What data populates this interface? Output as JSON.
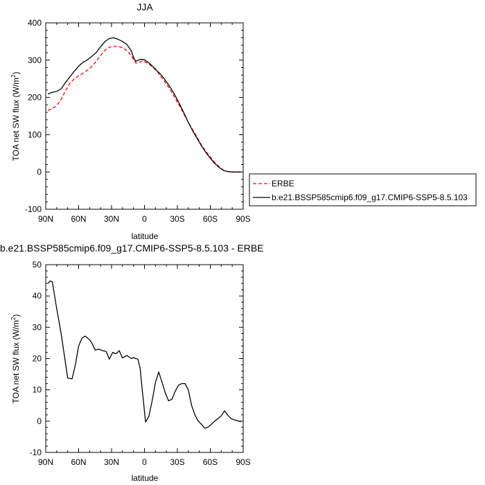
{
  "chart_data": [
    {
      "type": "line",
      "title": "JJA",
      "xlabel": "latitude",
      "ylabel": "TOA net SW flux (W/m",
      "ylabel_sup": "2",
      "ylabel_end": ")",
      "xlim": [
        90,
        -90
      ],
      "ylim": [
        -100,
        400
      ],
      "xticks": [
        {
          "value": 90,
          "label": "90N"
        },
        {
          "value": 60,
          "label": "60N"
        },
        {
          "value": 30,
          "label": "30N"
        },
        {
          "value": 0,
          "label": "0"
        },
        {
          "value": -30,
          "label": "30S"
        },
        {
          "value": -60,
          "label": "60S"
        },
        {
          "value": -90,
          "label": "90S"
        }
      ],
      "yticks": [
        {
          "value": -100,
          "label": "-100"
        },
        {
          "value": 0,
          "label": "0"
        },
        {
          "value": 100,
          "label": "100"
        },
        {
          "value": 200,
          "label": "200"
        },
        {
          "value": 300,
          "label": "300"
        },
        {
          "value": 400,
          "label": "400"
        }
      ],
      "legend_position": "right",
      "series": [
        {
          "name": "ERBE",
          "color": "#ff0000",
          "dash": "dashed",
          "x": [
            88,
            84,
            80,
            76,
            72,
            68,
            64,
            60,
            56,
            52,
            48,
            44,
            40,
            36,
            32,
            28,
            24,
            20,
            16,
            12,
            10,
            8,
            6,
            4,
            2,
            0,
            -4,
            -8,
            -12,
            -16,
            -20,
            -24,
            -28,
            -32,
            -36,
            -40,
            -44,
            -48,
            -52,
            -56,
            -60,
            -64,
            -68,
            -72,
            -76,
            -80,
            -84,
            -88
          ],
          "y": [
            165,
            170,
            178,
            195,
            218,
            238,
            250,
            258,
            265,
            273,
            283,
            297,
            313,
            327,
            335,
            337,
            337,
            333,
            325,
            312,
            302,
            293,
            292,
            295,
            298,
            296,
            290,
            280,
            268,
            252,
            236,
            218,
            198,
            177,
            155,
            133,
            113,
            93,
            72,
            55,
            40,
            26,
            14,
            5,
            1,
            0,
            0,
            0
          ]
        },
        {
          "name": "b.e21.BSSP585cmip6.f09_g17.CMIP6-SSP5-8.5.103",
          "color": "#000000",
          "dash": "solid",
          "x": [
            88,
            84,
            80,
            76,
            72,
            68,
            64,
            60,
            56,
            52,
            48,
            44,
            40,
            36,
            32,
            28,
            24,
            20,
            16,
            12,
            10,
            8,
            6,
            4,
            2,
            0,
            -4,
            -8,
            -12,
            -16,
            -20,
            -24,
            -28,
            -32,
            -36,
            -40,
            -44,
            -48,
            -52,
            -56,
            -60,
            -64,
            -68,
            -72,
            -76,
            -80,
            -84,
            -88
          ],
          "y": [
            209,
            214,
            216,
            223,
            240,
            255,
            270,
            284,
            294,
            301,
            310,
            320,
            336,
            350,
            358,
            360,
            356,
            350,
            342,
            325,
            307,
            297,
            299,
            302,
            302,
            301,
            293,
            282,
            270,
            258,
            242,
            225,
            205,
            182,
            158,
            133,
            110,
            90,
            70,
            52,
            37,
            23,
            12,
            4,
            1,
            0,
            0,
            0
          ]
        }
      ]
    },
    {
      "type": "line",
      "title": "b.e21.BSSP585cmip6.f09_g17.CMIP6-SSP5-8.5.103 - ERBE",
      "xlabel": "latitude",
      "ylabel": "TOA net SW flux (W/m",
      "ylabel_sup": "2",
      "ylabel_end": ")",
      "xlim": [
        90,
        -90
      ],
      "ylim": [
        -10,
        50
      ],
      "xticks": [
        {
          "value": 90,
          "label": "90N"
        },
        {
          "value": 60,
          "label": "60N"
        },
        {
          "value": 30,
          "label": "30N"
        },
        {
          "value": 0,
          "label": "0"
        },
        {
          "value": -30,
          "label": "30S"
        },
        {
          "value": -60,
          "label": "60S"
        },
        {
          "value": -90,
          "label": "90S"
        }
      ],
      "yticks": [
        {
          "value": -10,
          "label": "-10"
        },
        {
          "value": 0,
          "label": "0"
        },
        {
          "value": 10,
          "label": "10"
        },
        {
          "value": 20,
          "label": "20"
        },
        {
          "value": 30,
          "label": "30"
        },
        {
          "value": 40,
          "label": "40"
        },
        {
          "value": 50,
          "label": "50"
        }
      ],
      "series": [
        {
          "color": "#000000",
          "dash": "solid",
          "x": [
            88,
            86,
            84,
            80,
            76,
            73,
            70,
            66,
            63,
            60,
            57,
            54,
            50,
            48,
            45,
            42,
            38,
            35,
            32,
            29,
            26,
            23,
            20,
            16,
            12,
            10,
            8,
            6,
            4,
            2,
            -1,
            -4,
            -7,
            -10,
            -13,
            -16,
            -19,
            -22,
            -25,
            -28,
            -31,
            -34,
            -37,
            -40,
            -43,
            -46,
            -49,
            -52,
            -55,
            -58,
            -61,
            -64,
            -67,
            -70,
            -73,
            -76,
            -79,
            -82,
            -85,
            -88
          ],
          "y": [
            44,
            44.8,
            44.5,
            36,
            28,
            21,
            13.8,
            13.5,
            18,
            24,
            26.5,
            27.2,
            26,
            25,
            22.7,
            23,
            22.5,
            22.3,
            19.8,
            22,
            21.5,
            22.5,
            20.2,
            21,
            20,
            20.3,
            20,
            19.8,
            17,
            10,
            -0.3,
            1.5,
            6.5,
            12.3,
            15.7,
            12.5,
            9,
            6.5,
            7,
            9.5,
            11.5,
            12,
            12,
            10,
            5,
            2,
            0,
            -1,
            -2.3,
            -1.9,
            -1.0,
            0.0,
            0.8,
            1.7,
            3.3,
            1.9,
            0.8,
            0.4,
            0.1,
            -0.2
          ]
        }
      ]
    }
  ]
}
